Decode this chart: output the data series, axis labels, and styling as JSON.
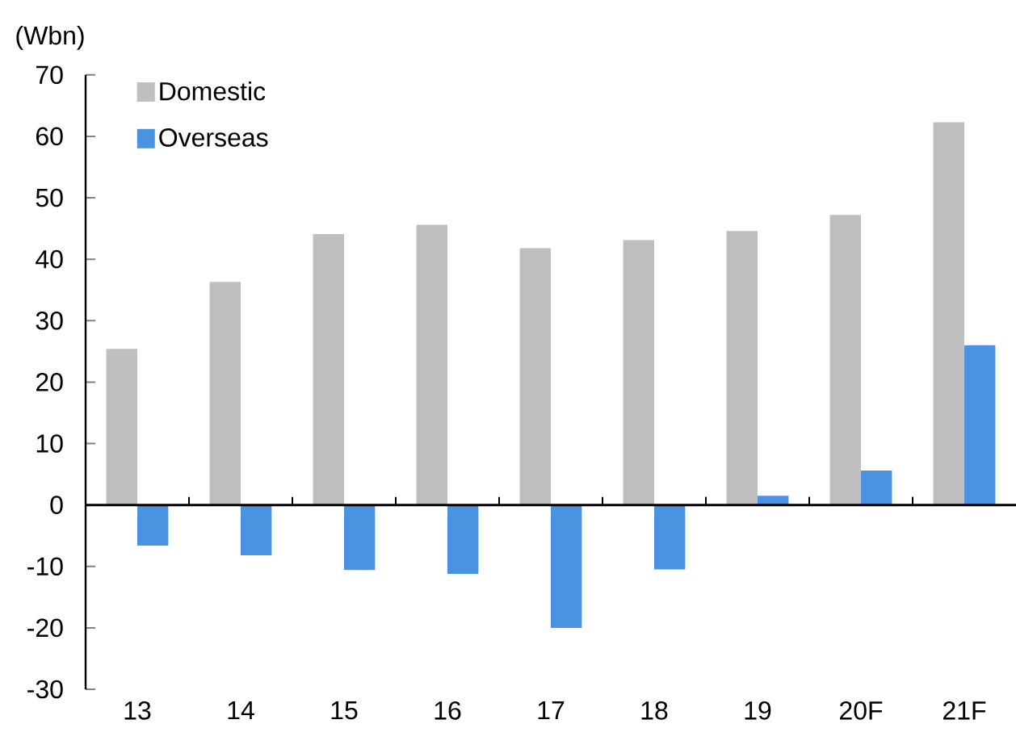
{
  "chart_data": {
    "type": "bar",
    "ylabel": "(Wbn)",
    "categories": [
      "13",
      "14",
      "15",
      "16",
      "17",
      "18",
      "19",
      "20F",
      "21F"
    ],
    "series": [
      {
        "name": "Domestic",
        "color": "#bfbfbf",
        "values": [
          25.4,
          36.3,
          44.1,
          45.6,
          41.8,
          43.1,
          44.6,
          47.2,
          62.3
        ]
      },
      {
        "name": "Overseas",
        "color": "#4a93e0",
        "values": [
          -6.6,
          -8.2,
          -10.6,
          -11.2,
          -20.0,
          -10.5,
          1.5,
          5.6,
          26.0
        ]
      }
    ],
    "ylim": [
      -30,
      70
    ],
    "yticks": [
      -30,
      -20,
      -10,
      0,
      10,
      20,
      30,
      40,
      50,
      60,
      70
    ],
    "legend": "top left"
  }
}
